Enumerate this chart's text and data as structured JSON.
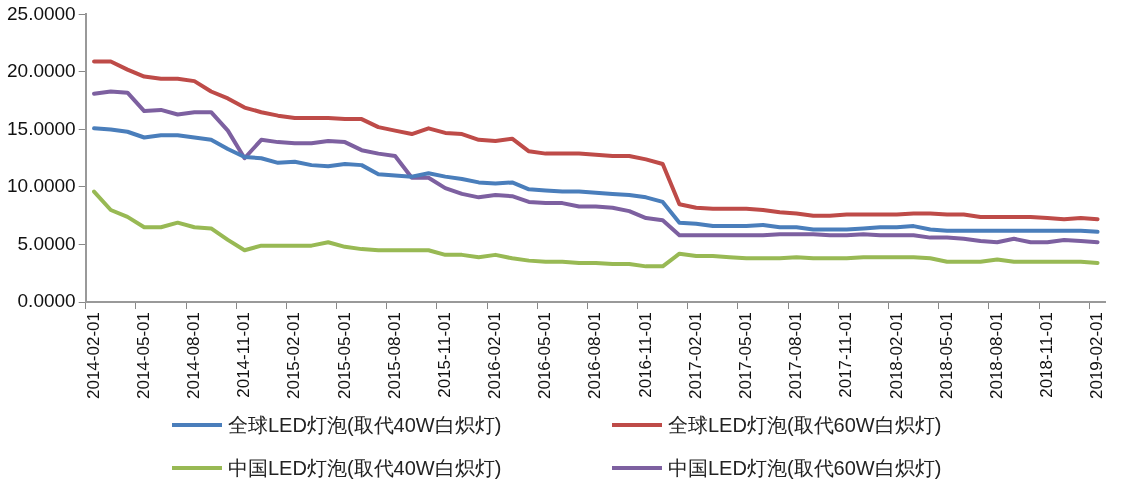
{
  "chart_data": {
    "type": "line",
    "categories": [
      "2014-02-01",
      null,
      null,
      "2014-05-01",
      null,
      null,
      "2014-08-01",
      null,
      null,
      "2014-11-01",
      null,
      null,
      "2015-02-01",
      null,
      null,
      "2015-05-01",
      null,
      null,
      "2015-08-01",
      null,
      null,
      "2015-11-01",
      null,
      null,
      "2016-02-01",
      null,
      null,
      "2016-05-01",
      null,
      null,
      "2016-08-01",
      null,
      null,
      "2016-11-01",
      null,
      null,
      "2017-02-01",
      null,
      null,
      "2017-05-01",
      null,
      null,
      "2017-08-01",
      null,
      null,
      "2017-11-01",
      null,
      null,
      "2018-02-01",
      null,
      null,
      "2018-05-01",
      null,
      null,
      "2018-08-01",
      null,
      null,
      "2018-11-01",
      null,
      null,
      "2019-02-01"
    ],
    "series": [
      {
        "name": "全球LED灯泡(取代40W白炽灯)",
        "color": "#4a7ebb",
        "values": [
          15.1,
          15.0,
          14.8,
          14.3,
          14.5,
          14.5,
          14.3,
          14.1,
          13.3,
          12.6,
          12.5,
          12.1,
          12.2,
          11.9,
          11.8,
          12.0,
          11.9,
          11.1,
          11.0,
          10.9,
          11.2,
          10.9,
          10.7,
          10.4,
          10.3,
          10.4,
          9.8,
          9.7,
          9.6,
          9.6,
          9.5,
          9.4,
          9.3,
          9.1,
          8.7,
          6.9,
          6.8,
          6.6,
          6.6,
          6.6,
          6.7,
          6.5,
          6.5,
          6.3,
          6.3,
          6.3,
          6.4,
          6.5,
          6.5,
          6.6,
          6.3,
          6.2,
          6.2,
          6.2,
          6.2,
          6.2,
          6.2,
          6.2,
          6.2,
          6.2,
          6.1
        ]
      },
      {
        "name": "全球LED灯泡(取代60W白炽灯)",
        "color": "#be4b48",
        "values": [
          20.9,
          20.9,
          20.2,
          19.6,
          19.4,
          19.4,
          19.2,
          18.3,
          17.7,
          16.9,
          16.5,
          16.2,
          16.0,
          16.0,
          16.0,
          15.9,
          15.9,
          15.2,
          14.9,
          14.6,
          15.1,
          14.7,
          14.6,
          14.1,
          14.0,
          14.2,
          13.1,
          12.9,
          12.9,
          12.9,
          12.8,
          12.7,
          12.7,
          12.4,
          12.0,
          8.5,
          8.2,
          8.1,
          8.1,
          8.1,
          8.0,
          7.8,
          7.7,
          7.5,
          7.5,
          7.6,
          7.6,
          7.6,
          7.6,
          7.7,
          7.7,
          7.6,
          7.6,
          7.4,
          7.4,
          7.4,
          7.4,
          7.3,
          7.2,
          7.3,
          7.2
        ]
      },
      {
        "name": "中国LED灯泡(取代40W白炽灯)",
        "color": "#98b954",
        "values": [
          9.6,
          8.0,
          7.4,
          6.5,
          6.5,
          6.9,
          6.5,
          6.4,
          5.4,
          4.5,
          4.9,
          4.9,
          4.9,
          4.9,
          5.2,
          4.8,
          4.6,
          4.5,
          4.5,
          4.5,
          4.5,
          4.1,
          4.1,
          3.9,
          4.1,
          3.8,
          3.6,
          3.5,
          3.5,
          3.4,
          3.4,
          3.3,
          3.3,
          3.1,
          3.1,
          4.2,
          4.0,
          4.0,
          3.9,
          3.8,
          3.8,
          3.8,
          3.9,
          3.8,
          3.8,
          3.8,
          3.9,
          3.9,
          3.9,
          3.9,
          3.8,
          3.5,
          3.5,
          3.5,
          3.7,
          3.5,
          3.5,
          3.5,
          3.5,
          3.5,
          3.4
        ]
      },
      {
        "name": "中国LED灯泡(取代60W白炽灯)",
        "color": "#7d60a0",
        "values": [
          18.1,
          18.3,
          18.2,
          16.6,
          16.7,
          16.3,
          16.5,
          16.5,
          14.9,
          12.5,
          14.1,
          13.9,
          13.8,
          13.8,
          14.0,
          13.9,
          13.2,
          12.9,
          12.7,
          10.8,
          10.8,
          9.9,
          9.4,
          9.1,
          9.3,
          9.2,
          8.7,
          8.6,
          8.6,
          8.3,
          8.3,
          8.2,
          7.9,
          7.3,
          7.1,
          5.8,
          5.8,
          5.8,
          5.8,
          5.8,
          5.8,
          5.9,
          5.9,
          5.9,
          5.8,
          5.8,
          5.9,
          5.8,
          5.8,
          5.8,
          5.6,
          5.6,
          5.5,
          5.3,
          5.2,
          5.5,
          5.2,
          5.2,
          5.4,
          5.3,
          5.2
        ]
      }
    ],
    "ylim": [
      0,
      25
    ],
    "yticks": [
      {
        "value": 0,
        "label": "0.0000"
      },
      {
        "value": 5,
        "label": "5.0000"
      },
      {
        "value": 10,
        "label": "10.0000"
      },
      {
        "value": 15,
        "label": "15.0000"
      },
      {
        "value": 20,
        "label": "20.0000"
      },
      {
        "value": 25,
        "label": "25.0000"
      }
    ],
    "grid": false,
    "legend": "bottom",
    "marker": "none",
    "line_style": "solid"
  }
}
